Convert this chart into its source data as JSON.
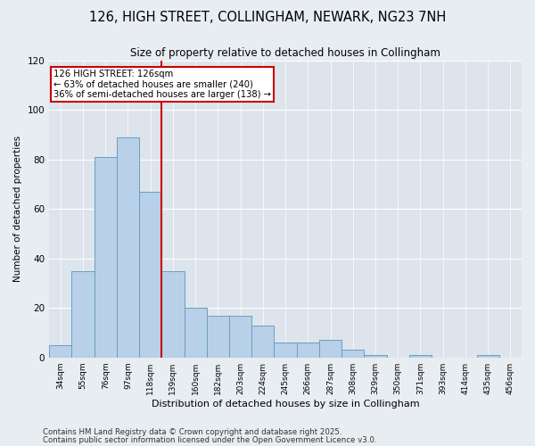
{
  "title_line1": "126, HIGH STREET, COLLINGHAM, NEWARK, NG23 7NH",
  "title_line2": "Size of property relative to detached houses in Collingham",
  "xlabel": "Distribution of detached houses by size in Collingham",
  "ylabel": "Number of detached properties",
  "categories": [
    "34sqm",
    "55sqm",
    "76sqm",
    "97sqm",
    "118sqm",
    "139sqm",
    "160sqm",
    "182sqm",
    "203sqm",
    "224sqm",
    "245sqm",
    "266sqm",
    "287sqm",
    "308sqm",
    "329sqm",
    "350sqm",
    "371sqm",
    "393sqm",
    "414sqm",
    "435sqm",
    "456sqm"
  ],
  "values": [
    5,
    35,
    81,
    89,
    67,
    35,
    20,
    17,
    17,
    13,
    6,
    6,
    7,
    3,
    1,
    0,
    1,
    0,
    0,
    1,
    0
  ],
  "bar_color": "#b8d0e8",
  "bar_edge_color": "#6a9fc0",
  "red_line_x": 4.5,
  "red_line_label": "126 HIGH STREET: 126sqm",
  "annotation_line2": "← 63% of detached houses are smaller (240)",
  "annotation_line3": "36% of semi-detached houses are larger (138) →",
  "annotation_box_color": "#ffffff",
  "annotation_box_edge": "#cc0000",
  "red_line_color": "#cc0000",
  "footnote1": "Contains HM Land Registry data © Crown copyright and database right 2025.",
  "footnote2": "Contains public sector information licensed under the Open Government Licence v3.0.",
  "bg_color": "#e8edf2",
  "plot_bg_color": "#dde4ec",
  "ylim": [
    0,
    120
  ],
  "yticks": [
    0,
    20,
    40,
    60,
    80,
    100,
    120
  ]
}
